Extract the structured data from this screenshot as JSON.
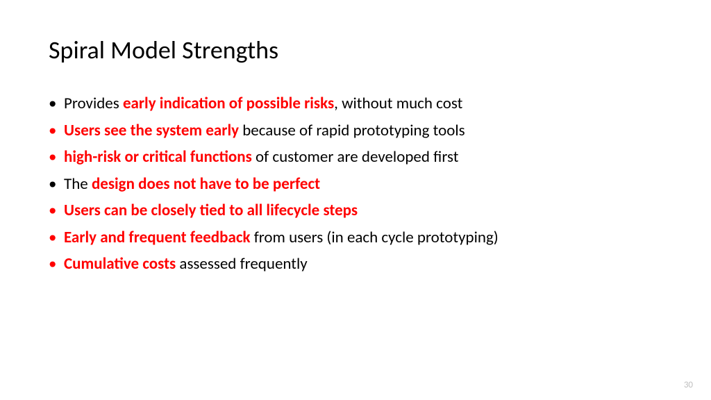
{
  "slide": {
    "title": "Spiral Model Strengths",
    "page_number": "30",
    "background_color": "#ffffff",
    "title_color": "#000000",
    "body_color": "#000000",
    "emphasis_color": "#ff0000",
    "page_number_color": "#bfbfbf",
    "title_fontsize": 36,
    "body_fontsize": 23,
    "bullets": [
      {
        "bullet_color": "black",
        "segments": [
          {
            "text": "Provides ",
            "emph": false
          },
          {
            "text": "early indication of possible risks",
            "emph": true
          },
          {
            "text": ", without much cost",
            "emph": false
          }
        ]
      },
      {
        "bullet_color": "red",
        "segments": [
          {
            "text": "Users see the system early ",
            "emph": true
          },
          {
            "text": "because of rapid prototyping tools",
            "emph": false
          }
        ]
      },
      {
        "bullet_color": "red",
        "segments": [
          {
            "text": "high-risk or critical functions ",
            "emph": true
          },
          {
            "text": "of customer are developed first",
            "emph": false
          }
        ]
      },
      {
        "bullet_color": "black",
        "segments": [
          {
            "text": "The ",
            "emph": false
          },
          {
            "text": "design does not have to be perfect",
            "emph": true
          }
        ]
      },
      {
        "bullet_color": "red",
        "segments": [
          {
            "text": "Users can be closely tied to all lifecycle steps",
            "emph": true
          }
        ]
      },
      {
        "bullet_color": "red",
        "segments": [
          {
            "text": "Early and frequent feedback ",
            "emph": true
          },
          {
            "text": "from users (in each cycle prototyping)",
            "emph": false
          }
        ]
      },
      {
        "bullet_color": "red",
        "segments": [
          {
            "text": "Cumulative costs ",
            "emph": true
          },
          {
            "text": "assessed frequently",
            "emph": false
          }
        ]
      }
    ]
  }
}
